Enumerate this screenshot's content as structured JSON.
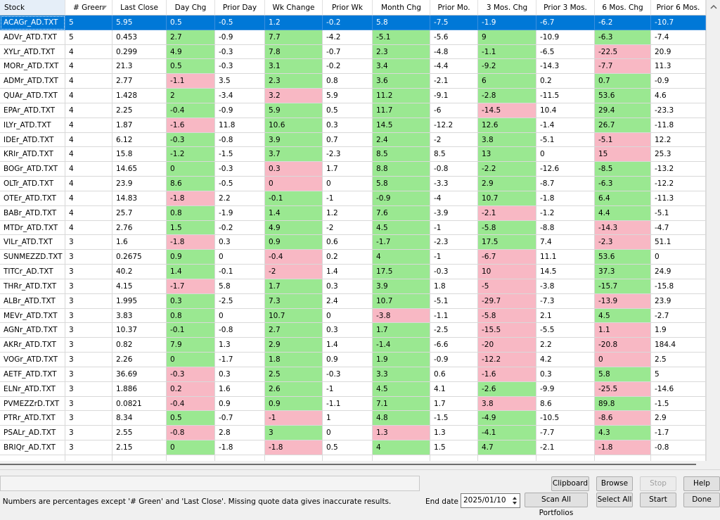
{
  "table": {
    "columns": [
      "Stock",
      "# Green",
      "Last Close",
      "Day Chg",
      "Prior Day",
      "Wk Change",
      "Prior Wk",
      "Month Chg",
      "Prior Mo.",
      "3 Mos. Chg",
      "Prior 3 Mos.",
      "6 Mos. Chg",
      "Prior 6 Mos."
    ],
    "sort_column": 1,
    "selected_row": 0,
    "colors": {
      "up": "#9ae891",
      "down": "#f8b8c4",
      "selected": "#0078d7"
    },
    "rows": [
      [
        "ACAGr_AD.TXT",
        "5",
        "5.95",
        "0.5",
        "-0.5",
        "1.2",
        "-0.2",
        "5.8",
        "-7.5",
        "-1.9",
        "-6.7",
        "-6.2",
        "-10.7"
      ],
      [
        "ADVr_ATD.TXT",
        "5",
        "0.453",
        "2.7",
        "-0.9",
        "7.7",
        "-4.2",
        "-5.1",
        "-5.6",
        "9",
        "-10.9",
        "-6.3",
        "-7.4"
      ],
      [
        "XYLr_ATD.TXT",
        "4",
        "0.299",
        "4.9",
        "-0.3",
        "7.8",
        "-0.7",
        "2.3",
        "-4.8",
        "-1.1",
        "-6.5",
        "-22.5",
        "20.9"
      ],
      [
        "MORr_ATD.TXT",
        "4",
        "21.3",
        "0.5",
        "-0.3",
        "3.1",
        "-0.2",
        "3.4",
        "-4.4",
        "-9.2",
        "-14.3",
        "-7.7",
        "11.3"
      ],
      [
        "ADMr_ATD.TXT",
        "4",
        "2.77",
        "-1.1",
        "3.5",
        "2.3",
        "0.8",
        "3.6",
        "-2.1",
        "6",
        "0.2",
        "0.7",
        "-0.9"
      ],
      [
        "QUAr_ATD.TXT",
        "4",
        "1.428",
        "2",
        "-3.4",
        "3.2",
        "5.9",
        "11.2",
        "-9.1",
        "-2.8",
        "-11.5",
        "53.6",
        "4.6"
      ],
      [
        "EPAr_ATD.TXT",
        "4",
        "2.25",
        "-0.4",
        "-0.9",
        "5.9",
        "0.5",
        "11.7",
        "-6",
        "-14.5",
        "10.4",
        "29.4",
        "-23.3"
      ],
      [
        "ILYr_ATD.TXT",
        "4",
        "1.87",
        "-1.6",
        "11.8",
        "10.6",
        "0.3",
        "14.5",
        "-12.2",
        "12.6",
        "-1.4",
        "26.7",
        "-11.8"
      ],
      [
        "IDEr_ATD.TXT",
        "4",
        "6.12",
        "-0.3",
        "-0.8",
        "3.9",
        "0.7",
        "2.4",
        "-2",
        "3.8",
        "-5.1",
        "-5.1",
        "12.2"
      ],
      [
        "KRIr_ATD.TXT",
        "4",
        "15.8",
        "-1.2",
        "-1.5",
        "3.7",
        "-2.3",
        "8.5",
        "8.5",
        "13",
        "0",
        "15",
        "25.3"
      ],
      [
        "BOGr_ATD.TXT",
        "4",
        "14.65",
        "0",
        "-0.3",
        "0.3",
        "1.7",
        "8.8",
        "-0.8",
        "-2.2",
        "-12.6",
        "-8.5",
        "-13.2"
      ],
      [
        "OLTr_ATD.TXT",
        "4",
        "23.9",
        "8.6",
        "-0.5",
        "0",
        "0",
        "5.8",
        "-3.3",
        "2.9",
        "-8.7",
        "-6.3",
        "-12.2"
      ],
      [
        "OTEr_ATD.TXT",
        "4",
        "14.83",
        "-1.8",
        "2.2",
        "-0.1",
        "-1",
        "-0.9",
        "-4",
        "10.7",
        "-1.8",
        "6.4",
        "-11.3"
      ],
      [
        "BABr_ATD.TXT",
        "4",
        "25.7",
        "0.8",
        "-1.9",
        "1.4",
        "1.2",
        "7.6",
        "-3.9",
        "-2.1",
        "-1.2",
        "4.4",
        "-5.1"
      ],
      [
        "MTDr_ATD.TXT",
        "4",
        "2.76",
        "1.5",
        "-0.2",
        "4.9",
        "-2",
        "4.5",
        "-1",
        "-5.8",
        "-8.8",
        "-14.3",
        "-4.7"
      ],
      [
        "VILr_ATD.TXT",
        "3",
        "1.6",
        "-1.8",
        "0.3",
        "0.9",
        "0.6",
        "-1.7",
        "-2.3",
        "17.5",
        "7.4",
        "-2.3",
        "51.1"
      ],
      [
        "SUNMEZZD.TXT",
        "3",
        "0.2675",
        "0.9",
        "0",
        "-0.4",
        "0.2",
        "4",
        "-1",
        "-6.7",
        "11.1",
        "53.6",
        "0"
      ],
      [
        "TITCr_AD.TXT",
        "3",
        "40.2",
        "1.4",
        "-0.1",
        "-2",
        "1.4",
        "17.5",
        "-0.3",
        "10",
        "14.5",
        "37.3",
        "24.9"
      ],
      [
        "THRr_ATD.TXT",
        "3",
        "4.15",
        "-1.7",
        "5.8",
        "1.7",
        "0.3",
        "3.9",
        "1.8",
        "-5",
        "-3.8",
        "-15.7",
        "-15.8"
      ],
      [
        "ALBr_ATD.TXT",
        "3",
        "1.995",
        "0.3",
        "-2.5",
        "7.3",
        "2.4",
        "10.7",
        "-5.1",
        "-29.7",
        "-7.3",
        "-13.9",
        "23.9"
      ],
      [
        "MEVr_ATD.TXT",
        "3",
        "3.83",
        "0.8",
        "0",
        "10.7",
        "0",
        "-3.8",
        "-1.1",
        "-5.8",
        "2.1",
        "4.5",
        "-2.7"
      ],
      [
        "AGNr_ATD.TXT",
        "3",
        "10.37",
        "-0.1",
        "-0.8",
        "2.7",
        "0.3",
        "1.7",
        "-2.5",
        "-15.5",
        "-5.5",
        "1.1",
        "1.9"
      ],
      [
        "AKRr_ATD.TXT",
        "3",
        "0.82",
        "7.9",
        "1.3",
        "2.9",
        "1.4",
        "-1.4",
        "-6.6",
        "-20",
        "2.2",
        "-20.8",
        "184.4"
      ],
      [
        "VOGr_ATD.TXT",
        "3",
        "2.26",
        "0",
        "-1.7",
        "1.8",
        "0.9",
        "1.9",
        "-0.9",
        "-12.2",
        "4.2",
        "0",
        "2.5"
      ],
      [
        "AETF_ATD.TXT",
        "3",
        "36.69",
        "-0.3",
        "0.3",
        "2.5",
        "-0.3",
        "3.3",
        "0.6",
        "-1.6",
        "0.3",
        "5.8",
        "5"
      ],
      [
        "ELNr_ATD.TXT",
        "3",
        "1.886",
        "0.2",
        "1.6",
        "2.6",
        "-1",
        "4.5",
        "4.1",
        "-2.6",
        "-9.9",
        "-25.5",
        "-14.6"
      ],
      [
        "PVMEZZrD.TXT",
        "3",
        "0.0821",
        "-0.4",
        "0.9",
        "0.9",
        "-1.1",
        "7.1",
        "1.7",
        "3.8",
        "8.6",
        "89.8",
        "-1.5"
      ],
      [
        "PTRr_ATD.TXT",
        "3",
        "8.34",
        "0.5",
        "-0.7",
        "-1",
        "1",
        "4.8",
        "-1.5",
        "-4.9",
        "-10.5",
        "-8.6",
        "2.9"
      ],
      [
        "PSALr_AD.TXT",
        "3",
        "2.55",
        "-0.8",
        "2.8",
        "3",
        "0",
        "1.3",
        "1.3",
        "-4.1",
        "-7.7",
        "4.3",
        "-1.7"
      ],
      [
        "BRIQr_AD.TXT",
        "3",
        "2.15",
        "0",
        "-1.8",
        "-1.8",
        "0.5",
        "4",
        "1.5",
        "4.7",
        "-2.1",
        "-1.8",
        "-0.8"
      ]
    ],
    "trend": [
      [
        "up",
        "up",
        "up",
        "up",
        "up"
      ],
      [
        "up",
        "up",
        "up",
        "up",
        "up"
      ],
      [
        "up",
        "up",
        "up",
        "up",
        "down"
      ],
      [
        "up",
        "up",
        "up",
        "up",
        "down"
      ],
      [
        "down",
        "up",
        "up",
        "up",
        "up"
      ],
      [
        "up",
        "down",
        "up",
        "up",
        "up"
      ],
      [
        "up",
        "up",
        "up",
        "down",
        "up"
      ],
      [
        "down",
        "up",
        "up",
        "up",
        "up"
      ],
      [
        "up",
        "up",
        "up",
        "up",
        "down"
      ],
      [
        "up",
        "up",
        "up",
        "up",
        "down"
      ],
      [
        "up",
        "down",
        "up",
        "up",
        "up"
      ],
      [
        "up",
        "down",
        "up",
        "up",
        "up"
      ],
      [
        "down",
        "up",
        "up",
        "up",
        "up"
      ],
      [
        "up",
        "up",
        "up",
        "down",
        "up"
      ],
      [
        "up",
        "up",
        "up",
        "up",
        "down"
      ],
      [
        "down",
        "up",
        "up",
        "up",
        "down"
      ],
      [
        "up",
        "down",
        "up",
        "down",
        "up"
      ],
      [
        "up",
        "down",
        "up",
        "down",
        "up"
      ],
      [
        "down",
        "up",
        "up",
        "down",
        "up"
      ],
      [
        "up",
        "up",
        "up",
        "down",
        "down"
      ],
      [
        "up",
        "up",
        "down",
        "down",
        "up"
      ],
      [
        "up",
        "up",
        "up",
        "down",
        "down"
      ],
      [
        "up",
        "up",
        "up",
        "down",
        "down"
      ],
      [
        "up",
        "up",
        "up",
        "down",
        "down"
      ],
      [
        "down",
        "up",
        "up",
        "down",
        "up"
      ],
      [
        "down",
        "up",
        "up",
        "up",
        "down"
      ],
      [
        "down",
        "up",
        "up",
        "down",
        "up"
      ],
      [
        "up",
        "down",
        "up",
        "up",
        "down"
      ],
      [
        "down",
        "up",
        "down",
        "up",
        "up"
      ],
      [
        "up",
        "down",
        "up",
        "up",
        "down"
      ]
    ]
  },
  "footer": {
    "note": "Numbers are percentages except '# Green' and 'Last Close'. Missing quote data gives inaccurate results.",
    "end_date_label": "End date",
    "end_date": "2025/01/10",
    "buttons": [
      {
        "label": "Clipboard",
        "enabled": true
      },
      {
        "label": "Browse",
        "enabled": true
      },
      {
        "label": "Stop",
        "enabled": false
      },
      {
        "label": "Help",
        "enabled": true
      },
      {
        "label": "Scan All Portfolios",
        "enabled": true
      },
      {
        "label": "Select All",
        "enabled": true
      },
      {
        "label": "Start",
        "enabled": true
      },
      {
        "label": "Done",
        "enabled": true
      }
    ]
  }
}
